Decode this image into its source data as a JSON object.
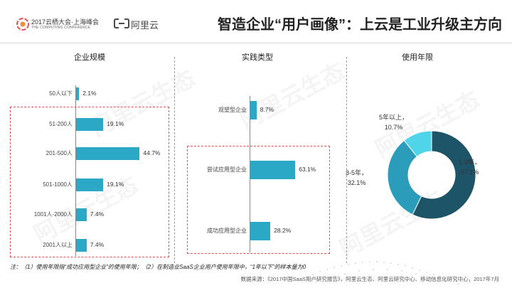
{
  "header": {
    "logo1_line1": "2017云栖大会·上海峰会",
    "logo1_line2": "THE COMPUTING CONFERENCE",
    "logo2_name": "阿里云",
    "title": "智造企业“用户画像”：上云是工业升级主方向"
  },
  "chart_data": [
    {
      "type": "bar",
      "orientation": "horizontal",
      "title": "企业规模",
      "categories": [
        "50人以下",
        "51-200人",
        "201-500人",
        "501-1000人",
        "1001人-2000人",
        "2001人以上"
      ],
      "values": [
        2.1,
        19.1,
        44.7,
        19.1,
        7.4,
        7.4
      ],
      "value_labels": [
        "2.1%",
        "19.1%",
        "44.7%",
        "19.1%",
        "7.4%",
        "7.4%"
      ],
      "unit": "%",
      "highlighted": [
        "51-200人",
        "201-500人",
        "501-1000人",
        "1001人-2000人",
        "2001人以上"
      ],
      "color": "#2ca8c7"
    },
    {
      "type": "bar",
      "orientation": "horizontal",
      "title": "实践类型",
      "categories": [
        "观望型企业",
        "尝试应用型企业",
        "成功应用型企业"
      ],
      "values": [
        8.7,
        63.1,
        28.2
      ],
      "value_labels": [
        "8.7%",
        "63.1%",
        "28.2%"
      ],
      "unit": "%",
      "highlighted": [
        "尝试应用型企业",
        "成功应用型企业"
      ],
      "color": "#2ca8c7"
    },
    {
      "type": "pie",
      "donut": true,
      "title": "使用年限",
      "slices": [
        {
          "label": "1-3年",
          "value": 57.1,
          "value_label": "57.1%",
          "color": "#1d5468"
        },
        {
          "label": "3-5年",
          "value": 32.1,
          "value_label": "32.1%",
          "color": "#2b9dbb"
        },
        {
          "label": "5年以上",
          "value": 10.7,
          "value_label": "10.7%",
          "color": "#4fd4ea"
        }
      ]
    }
  ],
  "footnote": "注：（1）使用年限指“成功应用型企业”的使用年限；（2）在制造业SaaS企业用户使用年限中，“1年以下”的样本量为0",
  "source": "数据来源：《2017中国SaaS用户研究报告》，阿里云生态、阿里云研究中心、移动信息化研究中心，2017年7月",
  "watermark": "阿里云生态",
  "colors": {
    "accent_red": "#e8504f",
    "bar": "#2ca8c7"
  }
}
